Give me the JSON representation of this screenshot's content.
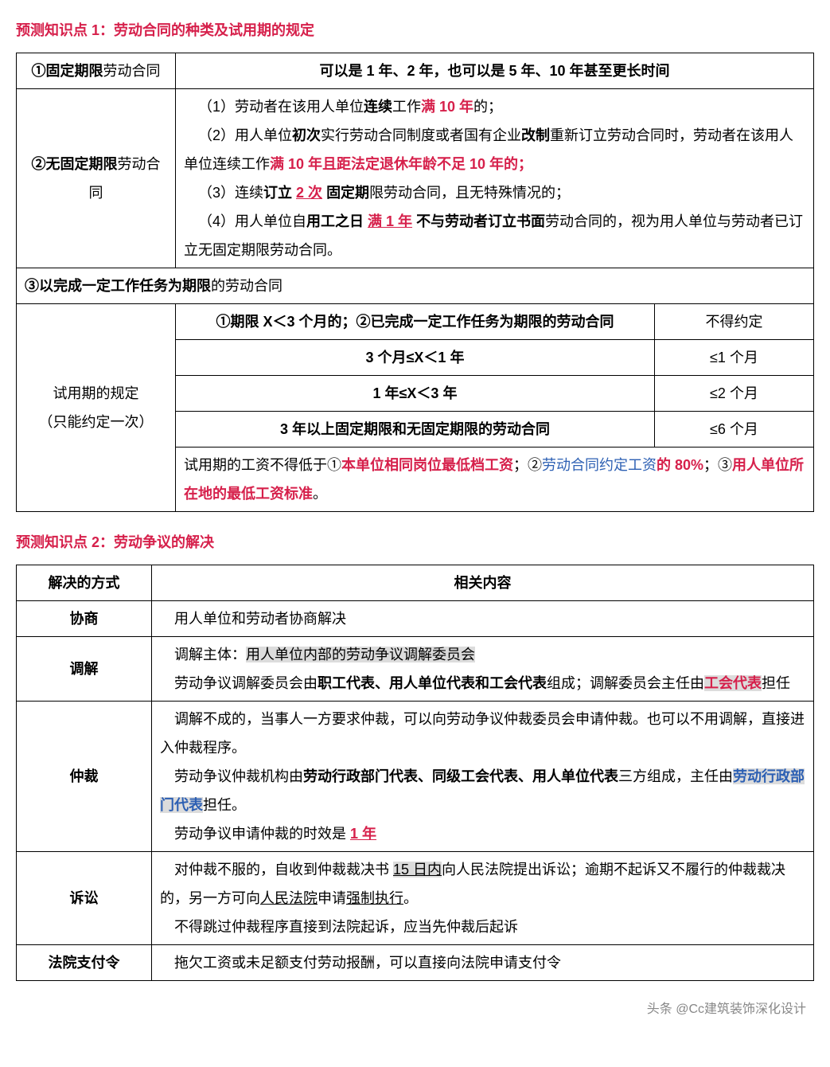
{
  "section1": {
    "title": "预测知识点 1：劳动合同的种类及试用期的规定",
    "row1_label_prefix": "①固定期限",
    "row1_label_suffix": "劳动合同",
    "row1_content": "可以是 1 年、2 年，也可以是 5 年、10 年甚至更长时间",
    "row2_label_prefix": "②无固定期限",
    "row2_label_suffix": "劳动合同",
    "r2_p1_a": "（1）劳动者在该用人单位",
    "r2_p1_b": "连续",
    "r2_p1_c": "工作",
    "r2_p1_d": "满 10 年",
    "r2_p1_e": "的；",
    "r2_p2_a": "（2）用人单位",
    "r2_p2_b": "初次",
    "r2_p2_c": "实行劳动合同制度或者国有企业",
    "r2_p2_d": "改制",
    "r2_p2_e": "重新订立劳动合同时，劳动者在该用人单位连续工作",
    "r2_p2_f": "满 10 年且距法定退休年龄不足 10 年的；",
    "r2_p3_a": "（3）连续",
    "r2_p3_b": "订立",
    "r2_p3_c": "2 次",
    "r2_p3_d": "固定期",
    "r2_p3_e": "限劳动合同，且无特殊情况的；",
    "r2_p4_a": "（4）用人单位自",
    "r2_p4_b": "用工之日",
    "r2_p4_c": "满 1 年",
    "r2_p4_d": "不与劳动者订立书面",
    "r2_p4_e": "劳动合同的，视为用人单位与劳动者已订立无固定期限劳动合同。",
    "row3_prefix": "③以完成一定工作任务为期限",
    "row3_suffix": "的劳动合同",
    "trial_label_l1": "试用期的规定",
    "trial_label_l2": "（只能约定一次）",
    "trial_r1_c1": "①期限 X＜3 个月的；②已完成一定工作任务为期限的劳动合同",
    "trial_r1_c2": "不得约定",
    "trial_r2_c1": "3 个月≤X＜1 年",
    "trial_r2_c2": "≤1 个月",
    "trial_r3_c1": "1 年≤X＜3 年",
    "trial_r3_c2": "≤2 个月",
    "trial_r4_c1": "3 年以上固定期限和无固定期限的劳动合同",
    "trial_r4_c2": "≤6 个月",
    "trial_wage_a": "试用期的工资不得低于①",
    "trial_wage_b": "本单位相同岗位最低档工资",
    "trial_wage_c": "；②",
    "trial_wage_d": "劳动合同约定工资",
    "trial_wage_e": "的 80%",
    "trial_wage_f": "；③",
    "trial_wage_g": "用人单位所在地的最低工资标准",
    "trial_wage_h": "。"
  },
  "section2": {
    "title": "预测知识点 2：劳动争议的解决",
    "header_c1": "解决的方式",
    "header_c2": "相关内容",
    "r1_method": "协商",
    "r1_content": "用人单位和劳动者协商解决",
    "r2_method": "调解",
    "r2_p1_a": "调解主体：",
    "r2_p1_b": "用人单位内部的劳动争议调解委员会",
    "r2_p2_a": "劳动争议调解委员会由",
    "r2_p2_b": "职工代表、用人单位代表和工会代表",
    "r2_p2_c": "组成；调解委员会主任由",
    "r2_p2_d": "工会代表",
    "r2_p2_e": "担任",
    "r3_method": "仲裁",
    "r3_p1": "调解不成的，当事人一方要求仲裁，可以向劳动争议仲裁委员会申请仲裁。也可以不用调解，直接进入仲裁程序。",
    "r3_p2_a": "劳动争议仲裁机构由",
    "r3_p2_b": "劳动行政部门代表、同级工会代表、用人单位代表",
    "r3_p2_c": "三方组成，主任由",
    "r3_p2_d": "劳动行政部门代表",
    "r3_p2_e": "担任。",
    "r3_p3_a": "劳动争议申请仲裁的时效是",
    "r3_p3_b": "1 年",
    "r4_method": "诉讼",
    "r4_p1_a": "对仲裁不服的，自收到仲裁裁决书",
    "r4_p1_b": "15 日内",
    "r4_p1_c": "向人民法院提出诉讼；逾期不起诉又不履行的仲裁裁决的，另一方可向",
    "r4_p1_d": "人民法院",
    "r4_p1_e": "申请",
    "r4_p1_f": "强制执行",
    "r4_p1_g": "。",
    "r4_p2": "不得跳过仲裁程序直接到法院起诉，应当先仲裁后起诉",
    "r5_method": "法院支付令",
    "r5_content": "拖欠工资或未足额支付劳动报酬，可以直接向法院申请支付令"
  },
  "watermark": "头条 @Cc建筑装饰深化设计"
}
